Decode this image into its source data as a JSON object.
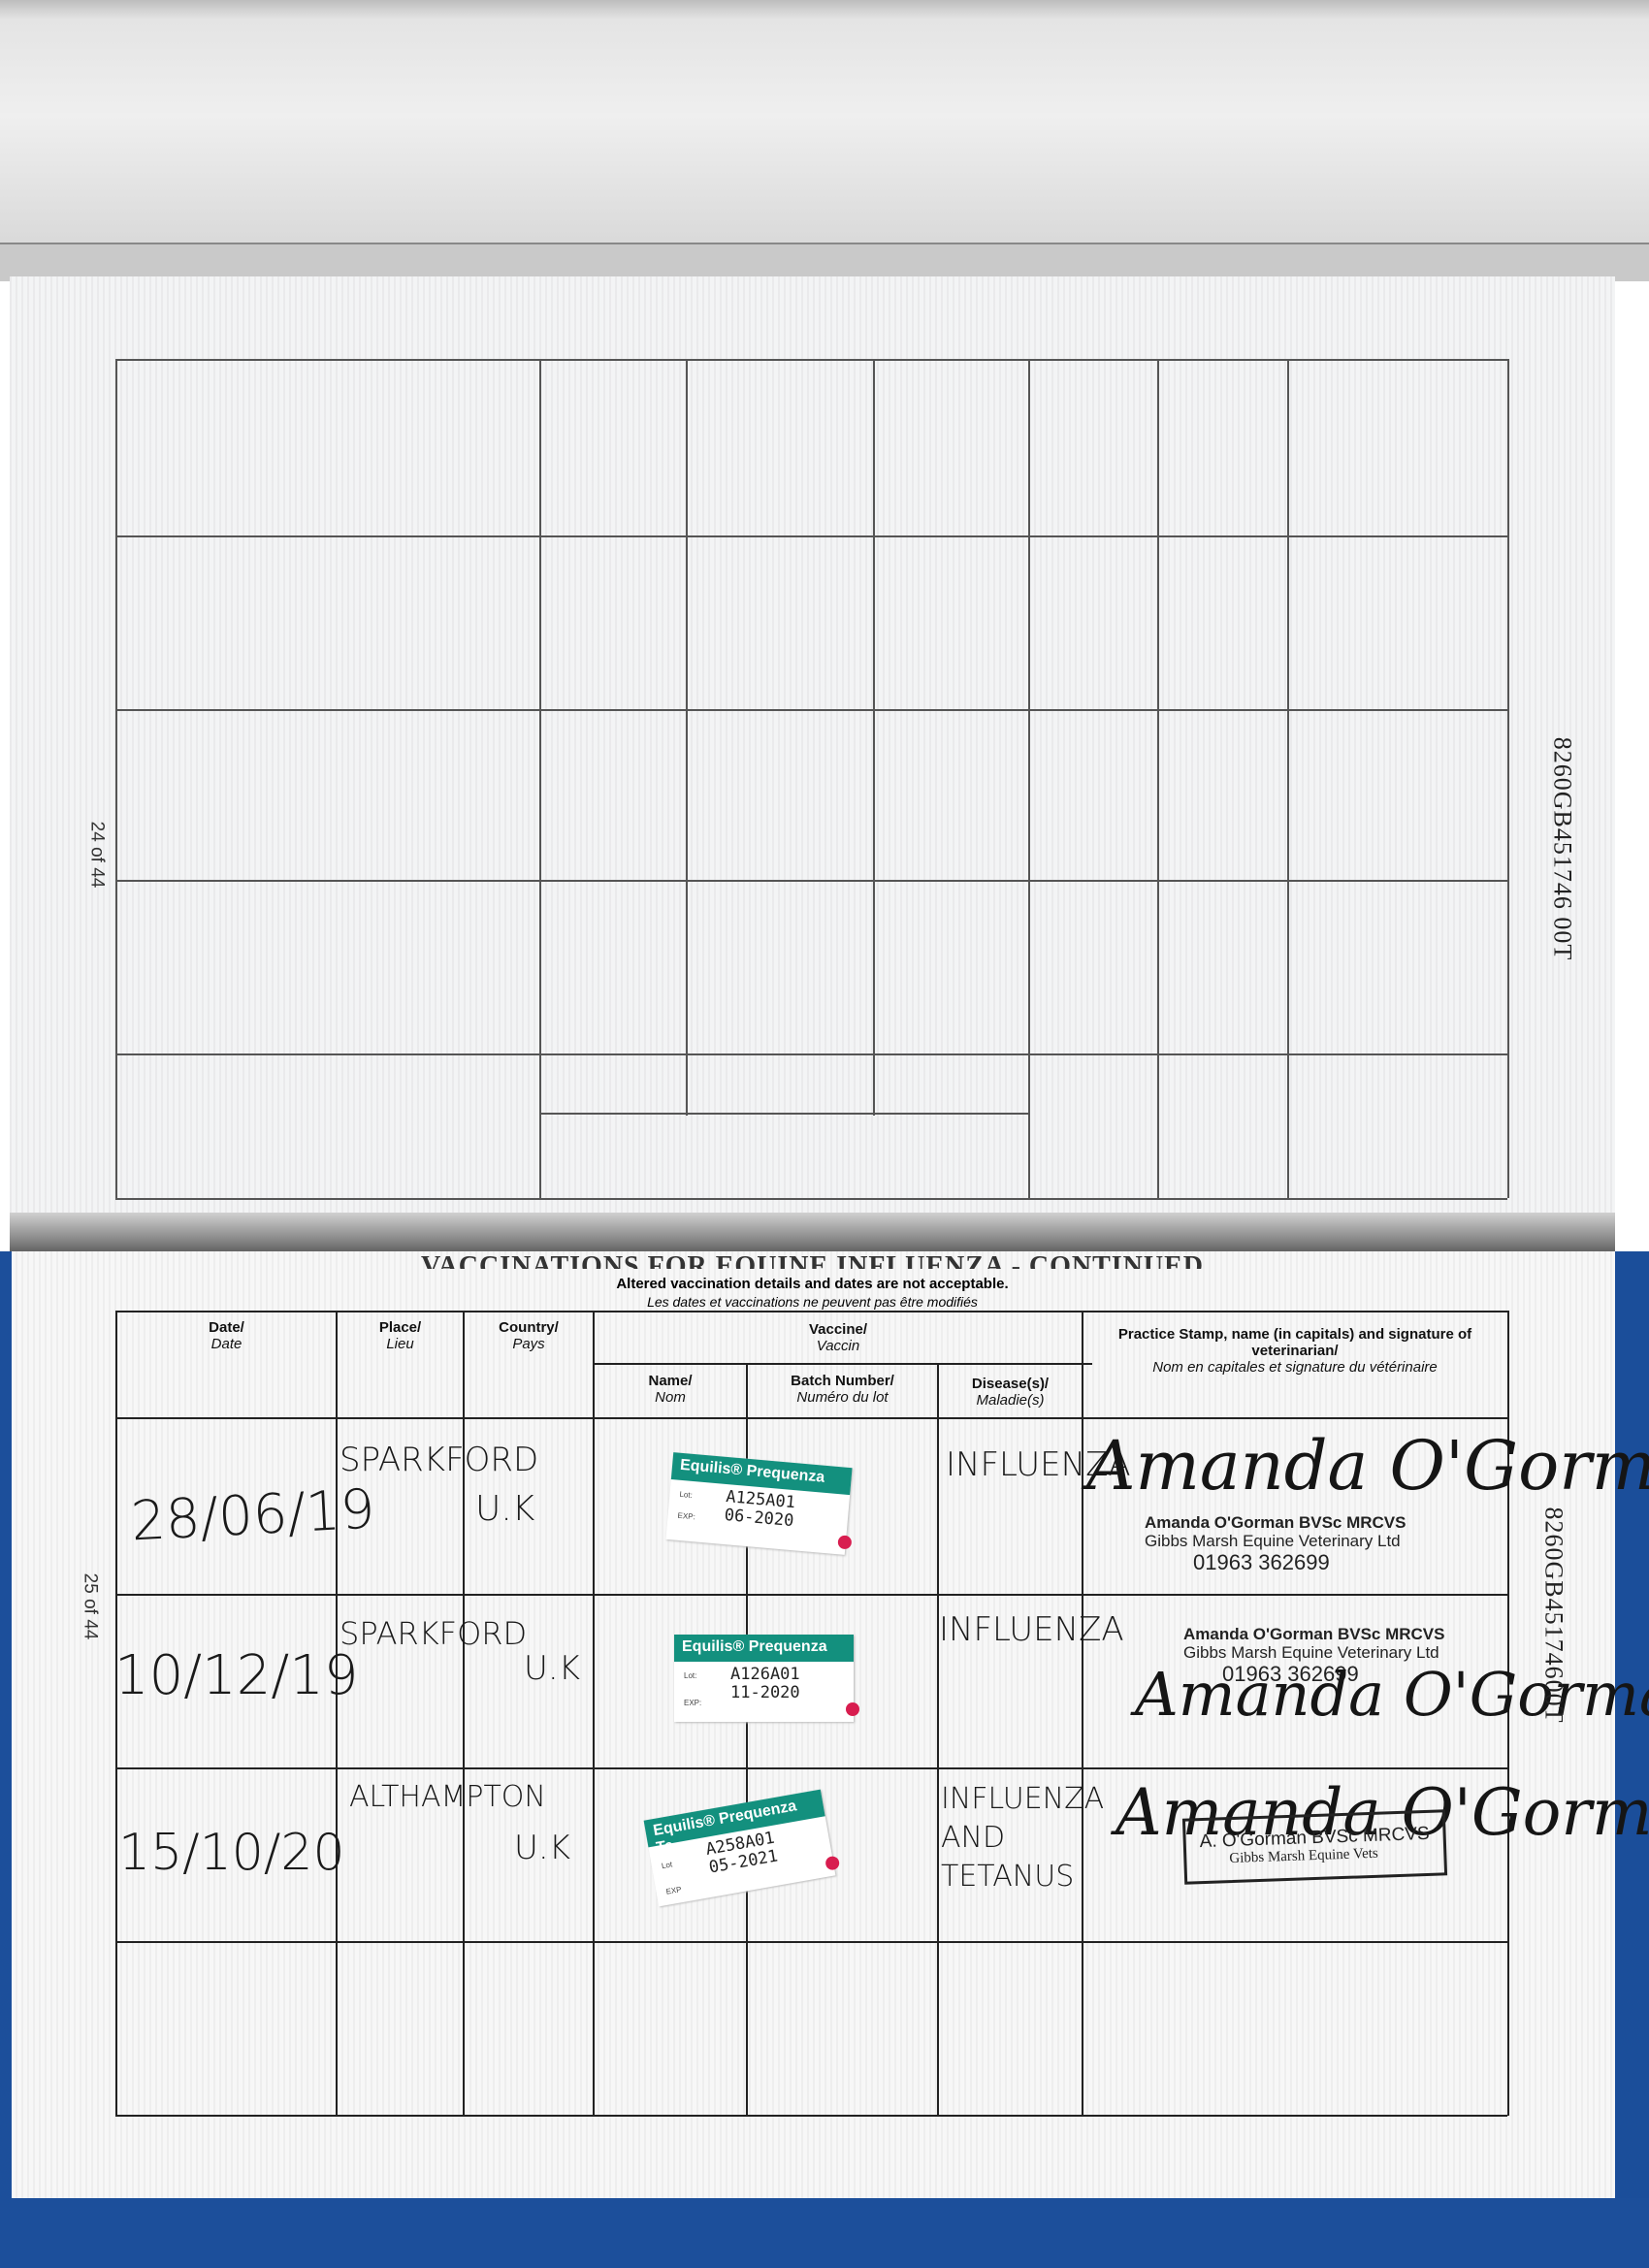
{
  "page_top": {
    "page_number": "24 of 44",
    "serial": "8260GB451746 00T"
  },
  "page_bottom": {
    "page_number": "25 of 44",
    "serial": "8260GB45174600T",
    "title": "VACCINATIONS FOR EQUINE INFLUENZA - CONTINUED",
    "notice_en": "Altered vaccination details and dates are not acceptable.",
    "notice_fr": "Les dates et vaccinations ne peuvent pas être modifiés",
    "headers": {
      "date": {
        "en": "Date/",
        "fr": "Date"
      },
      "place": {
        "en": "Place/",
        "fr": "Lieu"
      },
      "country": {
        "en": "Country/",
        "fr": "Pays"
      },
      "vaccine": {
        "en": "Vaccine/",
        "fr": "Vaccin"
      },
      "name": {
        "en": "Name/",
        "fr": "Nom"
      },
      "batch": {
        "en": "Batch Number/",
        "fr": "Numéro du lot"
      },
      "disease": {
        "en": "Disease(s)/",
        "fr": "Maladie(s)"
      },
      "stamp": {
        "en": "Practice Stamp, name (in capitals) and signature of veterinarian/",
        "fr": "Nom en capitales et signature du vétérinaire"
      }
    },
    "rows": [
      {
        "date": "28/06/19",
        "place": "SPARKFORD",
        "country": "U.K",
        "vaccine": "Equilis® Prequenza",
        "lot_label": "Lot:",
        "exp_label": "EXP:",
        "batch": "A125A01",
        "expiry": "06-2020",
        "disease": "INFLUENZA",
        "stamp_line1": "Amanda O'Gorman BVSc MRCVS",
        "stamp_line2": "Gibbs Marsh Equine Veterinary Ltd",
        "stamp_line3": "01963 362699",
        "signature": "Amanda O'Gorman"
      },
      {
        "date": "10/12/19",
        "place": "SPARKFORD",
        "country": "U.K",
        "vaccine": "Equilis® Prequenza",
        "lot_label": "Lot:",
        "exp_label": "EXP:",
        "batch": "A126A01",
        "expiry": "11-2020",
        "disease": "INFLUENZA",
        "stamp_line1": "Amanda O'Gorman BVSc MRCVS",
        "stamp_line2": "Gibbs Marsh Equine Veterinary Ltd",
        "stamp_line3": "01963 362699",
        "signature": "Amanda O'Gorman"
      },
      {
        "date": "15/10/20",
        "place": "ALTHAMPTON",
        "country": "U.K",
        "vaccine": "Equilis® Prequenza Te",
        "lot_label": "Lot",
        "exp_label": "EXP",
        "batch": "A258A01",
        "expiry": "05-2021",
        "disease": "INFLUENZA AND TETANUS",
        "stamp_line1": "A. O'Gorman BVSc MRCVS",
        "stamp_line2": "Gibbs Marsh Equine Vets",
        "signature": "Amanda O'Gorman"
      }
    ]
  },
  "colors": {
    "sticker_green": "#13907e",
    "binder_blue": "#1c4f9b",
    "sticker_dot": "#d81d4f"
  }
}
